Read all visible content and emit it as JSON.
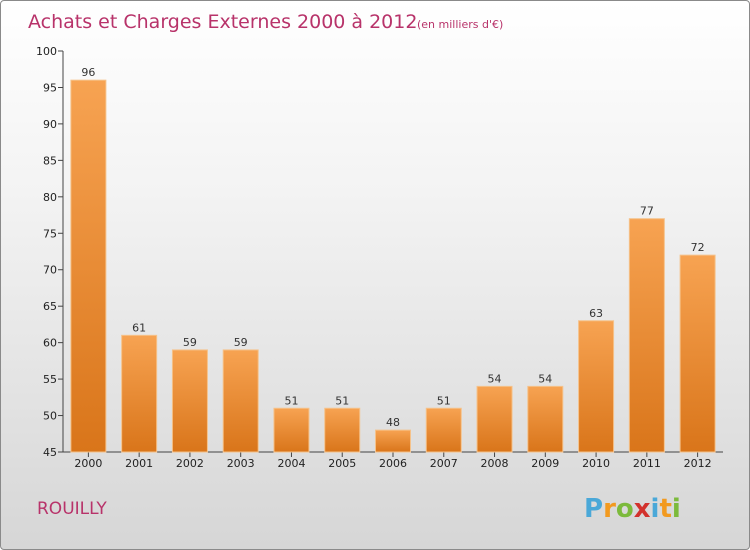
{
  "chart_data": {
    "type": "bar",
    "title": "Achats et Charges Externes 2000 à 2012",
    "subtitle": "(en milliers d'€)",
    "categories": [
      "2000",
      "2001",
      "2002",
      "2003",
      "2004",
      "2005",
      "2006",
      "2007",
      "2008",
      "2009",
      "2010",
      "2011",
      "2012"
    ],
    "values": [
      96,
      61,
      59,
      59,
      51,
      51,
      48,
      51,
      54,
      54,
      63,
      77,
      72
    ],
    "ylim": [
      45,
      100
    ],
    "yticks": [
      45,
      50,
      55,
      60,
      65,
      70,
      75,
      80,
      85,
      90,
      95,
      100
    ],
    "grid": false,
    "bar_color_top": "#f7a352",
    "bar_color_bottom": "#d9751a"
  },
  "location": "ROUILLY",
  "logo": {
    "letters": [
      "P",
      "r",
      "o",
      "x",
      "i",
      "t",
      "i"
    ],
    "colors": [
      "#4aa8d8",
      "#f29a1f",
      "#7cba3c",
      "#d2322d",
      "#4aa8d8",
      "#f29a1f",
      "#7cba3c"
    ]
  }
}
